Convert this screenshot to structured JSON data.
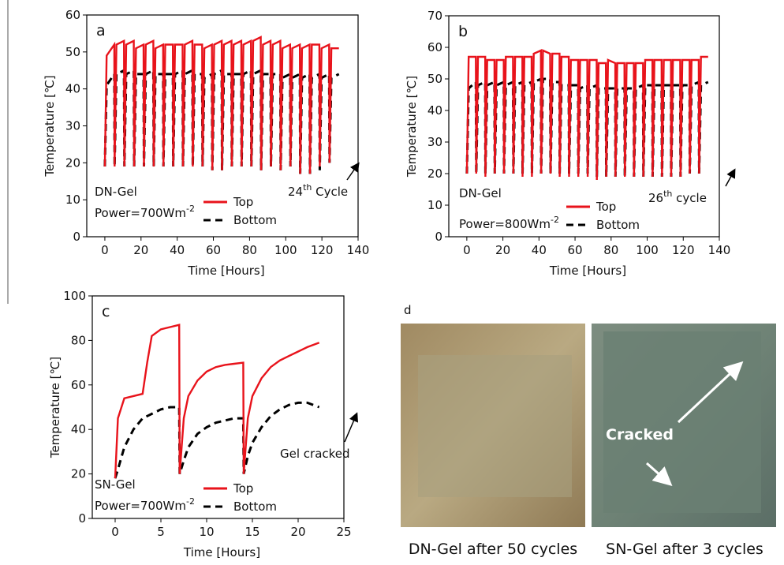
{
  "chart_data": [
    {
      "type": "line",
      "panel": "a",
      "xlabel": "Time [Hours]",
      "ylabel": "Temperature [℃]",
      "xlim": [
        -10,
        140
      ],
      "ylim": [
        0,
        60
      ],
      "xticks": [
        0,
        20,
        40,
        60,
        80,
        100,
        120,
        140
      ],
      "yticks": [
        0,
        10,
        20,
        30,
        40,
        50,
        60
      ],
      "x": [
        0,
        1,
        5.2,
        5.4,
        6.4,
        10.6,
        10.8,
        11.8,
        16,
        16.2,
        17.2,
        21.4,
        21.6,
        22.6,
        26.8,
        27,
        28,
        32.2,
        32.4,
        33.4,
        37.6,
        37.8,
        38.8,
        43,
        43.2,
        44.2,
        48.4,
        48.6,
        49.6,
        53.8,
        54,
        55,
        59.2,
        59.4,
        60.4,
        64.6,
        64.8,
        65.8,
        70,
        70.2,
        71.2,
        75.4,
        75.6,
        76.6,
        80.8,
        81,
        82,
        86.2,
        86.4,
        87.4,
        91.6,
        91.8,
        92.8,
        97,
        97.2,
        98.2,
        102.4,
        102.6,
        103.6,
        107.8,
        108,
        109,
        113.2,
        113.4,
        114.4,
        118.6,
        118.8,
        119.8,
        124,
        124.2,
        125.2,
        129.4
      ],
      "series": [
        {
          "name": "Top",
          "color": "#e8131b",
          "dash": false,
          "values": [
            19,
            49,
            52,
            19,
            52,
            53,
            19,
            52,
            53,
            19,
            51,
            52,
            19,
            52,
            53,
            19,
            51,
            52,
            19,
            52,
            52,
            19,
            52,
            52,
            19,
            52,
            53,
            19,
            52,
            52,
            19,
            51,
            52,
            18,
            52,
            53,
            18,
            52,
            53,
            19,
            52,
            53,
            19,
            52,
            53,
            19,
            53,
            54,
            18,
            52,
            53,
            19,
            52,
            53,
            18,
            51,
            52,
            19,
            51,
            52,
            17,
            51,
            52,
            17,
            52,
            52,
            19,
            51,
            52,
            20,
            51,
            51
          ]
        },
        {
          "name": "Bottom",
          "color": "#000000",
          "dash": true,
          "values": [
            19,
            41,
            44,
            19,
            44,
            45,
            19,
            44,
            45,
            19,
            44,
            44,
            19,
            44,
            45,
            19,
            44,
            44,
            19,
            44,
            44,
            19,
            44,
            45,
            19,
            44,
            45,
            19,
            44,
            44,
            19,
            43,
            44,
            18,
            44,
            45,
            18,
            44,
            44,
            19,
            44,
            44,
            19,
            44,
            45,
            19,
            44,
            45,
            18,
            44,
            44,
            19,
            44,
            44,
            18,
            43,
            44,
            19,
            43,
            44,
            17,
            43,
            44,
            17,
            43,
            44,
            18,
            43,
            44,
            20,
            43,
            44
          ]
        }
      ],
      "annotations": [
        {
          "text": "DN-Gel"
        },
        {
          "text": "Power=700Wm",
          "sup": "-2"
        },
        {
          "text": "24",
          "sup": "th",
          "after": " Cycle"
        }
      ]
    },
    {
      "type": "line",
      "panel": "b",
      "xlabel": "Time [Hours]",
      "ylabel": "Temperature [℃]",
      "xlim": [
        -10,
        140
      ],
      "ylim": [
        0,
        70
      ],
      "xticks": [
        0,
        20,
        40,
        60,
        80,
        100,
        120,
        140
      ],
      "yticks": [
        0,
        10,
        20,
        30,
        40,
        50,
        60,
        70
      ],
      "x": [
        0,
        1,
        5,
        5.2,
        6.2,
        10.2,
        10.3,
        11.3,
        15.3,
        15.5,
        16.5,
        20.5,
        20.6,
        21.6,
        25.6,
        25.8,
        26.8,
        30.8,
        30.9,
        31.9,
        35.9,
        36.1,
        37.1,
        41.1,
        41.2,
        42.2,
        46.2,
        46.4,
        47.4,
        51.4,
        51.5,
        52.5,
        56.5,
        56.7,
        57.7,
        61.7,
        61.8,
        62.8,
        66.8,
        67,
        68,
        72,
        72.1,
        73.1,
        77.1,
        77.3,
        78.3,
        82.3,
        82.4,
        83.4,
        87.4,
        87.6,
        88.6,
        92.6,
        92.7,
        93.7,
        97.7,
        97.9,
        98.9,
        102.9,
        103,
        104,
        108,
        108.2,
        109.2,
        113.2,
        113.3,
        114.3,
        118.3,
        118.5,
        119.5,
        123.5,
        123.6,
        124.6,
        128.6,
        128.8,
        129.8,
        133.8
      ],
      "series": [
        {
          "name": "Top",
          "color": "#e8131b",
          "dash": false,
          "values": [
            20,
            57,
            57,
            20,
            57,
            57,
            19,
            56,
            56,
            20,
            56,
            56,
            20,
            57,
            57,
            20,
            57,
            57,
            19,
            57,
            57,
            19,
            58,
            59,
            20,
            59,
            58,
            20,
            58,
            58,
            19,
            57,
            57,
            19,
            56,
            56,
            19,
            56,
            56,
            19,
            56,
            56,
            18,
            55,
            55,
            19,
            56,
            55,
            19,
            55,
            55,
            19,
            55,
            55,
            19,
            55,
            55,
            19,
            56,
            56,
            19,
            56,
            56,
            19,
            56,
            56,
            19,
            56,
            56,
            19,
            56,
            56,
            20,
            56,
            56,
            20,
            57,
            57
          ]
        },
        {
          "name": "Bottom",
          "color": "#000000",
          "dash": true,
          "values": [
            20,
            47,
            49,
            20,
            48,
            49,
            20,
            48,
            49,
            20,
            48,
            49,
            20,
            48,
            49,
            20,
            48,
            49,
            20,
            48,
            49,
            20,
            49,
            50,
            20,
            50,
            50,
            20,
            49,
            49,
            20,
            48,
            48,
            20,
            48,
            48,
            20,
            47,
            48,
            20,
            47,
            48,
            19,
            47,
            47,
            19,
            47,
            47,
            19,
            47,
            47,
            19,
            47,
            47,
            19,
            47,
            48,
            19,
            48,
            48,
            19,
            48,
            48,
            19,
            48,
            48,
            19,
            48,
            48,
            19,
            48,
            48,
            20,
            48,
            49,
            20,
            48,
            49
          ]
        }
      ],
      "annotations": [
        {
          "text": "DN-Gel"
        },
        {
          "text": "Power=800Wm",
          "sup": "-2"
        },
        {
          "text": "26",
          "sup": "th",
          "after": " cycle"
        }
      ]
    },
    {
      "type": "line",
      "panel": "c",
      "xlabel": "Time [Hours]",
      "ylabel": "Temperature [℃]",
      "xlim": [
        -2.5,
        25
      ],
      "ylim": [
        0,
        100
      ],
      "xticks": [
        0,
        5,
        10,
        15,
        20,
        25
      ],
      "yticks": [
        0,
        20,
        40,
        60,
        80,
        100
      ],
      "x": [
        0,
        0.3,
        1,
        2,
        3,
        3.5,
        4,
        5,
        6,
        7,
        7.05,
        7.5,
        8,
        9,
        10,
        11,
        12,
        13,
        14,
        14.05,
        14.5,
        15,
        16,
        17,
        18,
        19,
        20,
        21,
        22.3
      ],
      "series": [
        {
          "name": "Top",
          "color": "#e8131b",
          "dash": false,
          "values": [
            18,
            45,
            54,
            55,
            56,
            70,
            82,
            85,
            86,
            87,
            20,
            45,
            55,
            62,
            66,
            68,
            69,
            69.5,
            70,
            20,
            45,
            55,
            63,
            68,
            71,
            73,
            75,
            77,
            79
          ]
        },
        {
          "name": "Bottom",
          "color": "#000000",
          "dash": true,
          "values": [
            18,
            22,
            32,
            40,
            45,
            46,
            47,
            49,
            50,
            50,
            20,
            26,
            32,
            38,
            41,
            43,
            44,
            45,
            45,
            20,
            28,
            34,
            41,
            46,
            49,
            51,
            52,
            52,
            50
          ]
        }
      ],
      "annotations": [
        {
          "text": "SN-Gel"
        },
        {
          "text": "Power=700Wm",
          "sup": "-2"
        },
        {
          "text": "Gel cracked"
        }
      ]
    }
  ],
  "photos": {
    "panel": "d",
    "captions": [
      "DN-Gel after 50 cycles",
      "SN-Gel after 3 cycles"
    ],
    "annotation": "Cracked"
  }
}
